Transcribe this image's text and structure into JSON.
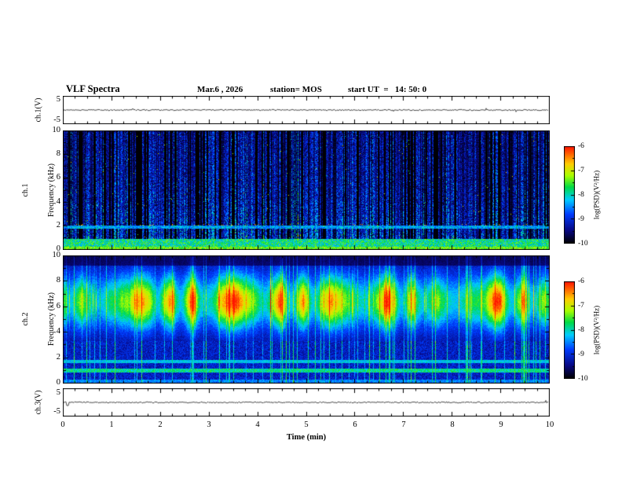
{
  "header": {
    "title": "VLF Spectra",
    "date": "Mar.6 , 2026",
    "station": "station= MOS",
    "start_ut": "start UT  =   14: 50: 0"
  },
  "yaxis": {
    "ch1_wave": {
      "label": "ch.1(V)",
      "tick_top": "5",
      "tick_bottom": "-5"
    },
    "ch1_spec": {
      "label_line1": "ch.1",
      "label_line2": "Frequency (kHz)",
      "ticks": [
        "10",
        "8",
        "6",
        "4",
        "2",
        "0"
      ]
    },
    "ch2_spec": {
      "label_line1": "ch.2",
      "label_line2": "Frequency (kHz)",
      "ticks": [
        "10",
        "8",
        "6",
        "4",
        "2",
        "0"
      ]
    },
    "ch3_wave": {
      "label": "ch.3(V)",
      "tick_top": "5",
      "tick_bottom": "-5"
    }
  },
  "xaxis": {
    "label": "Time (min)",
    "ticks": [
      "0",
      "1",
      "2",
      "3",
      "4",
      "5",
      "6",
      "7",
      "8",
      "9",
      "10"
    ]
  },
  "colorbar": {
    "label": "log(PSD)(V²/Hz)",
    "ticks": [
      "-6",
      "-7",
      "-8",
      "-9",
      "-10"
    ]
  },
  "chart_data": [
    {
      "type": "line",
      "name": "ch1_voltage",
      "ylabel": "ch.1(V)",
      "ylim": [
        -5,
        5
      ],
      "xlim": [
        0,
        10
      ],
      "xlabel": "Time (min)",
      "seed": 11,
      "description": "near-zero flat noisy voltage trace for channel 1"
    },
    {
      "type": "heatmap",
      "name": "ch1_spectrogram",
      "ylabel": "Frequency (kHz)",
      "ylim": [
        0,
        10
      ],
      "xlim": [
        0,
        10
      ],
      "zlabel": "log(PSD)(V²/Hz)",
      "zlim": [
        -10,
        -6
      ],
      "seed": 42,
      "pattern": {
        "background_level": -10,
        "vertical_impulse_streaks": true,
        "streak_density": 0.6,
        "low_freq_bright_band_khz": [
          0,
          0.9
        ],
        "horizontal_lines_khz": [
          1.9
        ],
        "sparse_red_dots_khz": 2.05,
        "typical_level": -9,
        "peak_level": -7
      }
    },
    {
      "type": "heatmap",
      "name": "ch2_spectrogram",
      "ylabel": "Frequency (kHz)",
      "ylim": [
        0,
        10
      ],
      "xlim": [
        0,
        10
      ],
      "zlabel": "log(PSD)(V²/Hz)",
      "zlim": [
        -10,
        -6
      ],
      "seed": 77,
      "pattern": {
        "strong_band_center_khz": 6.4,
        "strong_band_sigma_khz": 1.5,
        "band_peak_level": -6,
        "quasi_periodic_blobs": true,
        "low_freq_speckle_below_khz": 3.3,
        "horizontal_lines_khz": [
          1.0,
          1.7
        ],
        "dim_above_khz": 9.2
      }
    },
    {
      "type": "line",
      "name": "ch3_voltage",
      "ylabel": "ch.3(V)",
      "ylim": [
        -5,
        5
      ],
      "xlim": [
        0,
        10
      ],
      "xlabel": "Time (min)",
      "seed": 13,
      "description": "near-zero flat noisy voltage trace for channel 3"
    },
    {
      "type": "colorbar",
      "name": "colorbar",
      "range": [
        -10,
        -6
      ],
      "stops": [
        [
          0.0,
          [
            0,
            0,
            0
          ]
        ],
        [
          0.13,
          [
            8,
            8,
            130
          ]
        ],
        [
          0.3,
          [
            0,
            60,
            255
          ]
        ],
        [
          0.45,
          [
            0,
            205,
            255
          ]
        ],
        [
          0.58,
          [
            0,
            220,
            70
          ]
        ],
        [
          0.7,
          [
            170,
            255,
            0
          ]
        ],
        [
          0.82,
          [
            255,
            205,
            0
          ]
        ],
        [
          1.0,
          [
            255,
            20,
            0
          ]
        ]
      ]
    }
  ]
}
